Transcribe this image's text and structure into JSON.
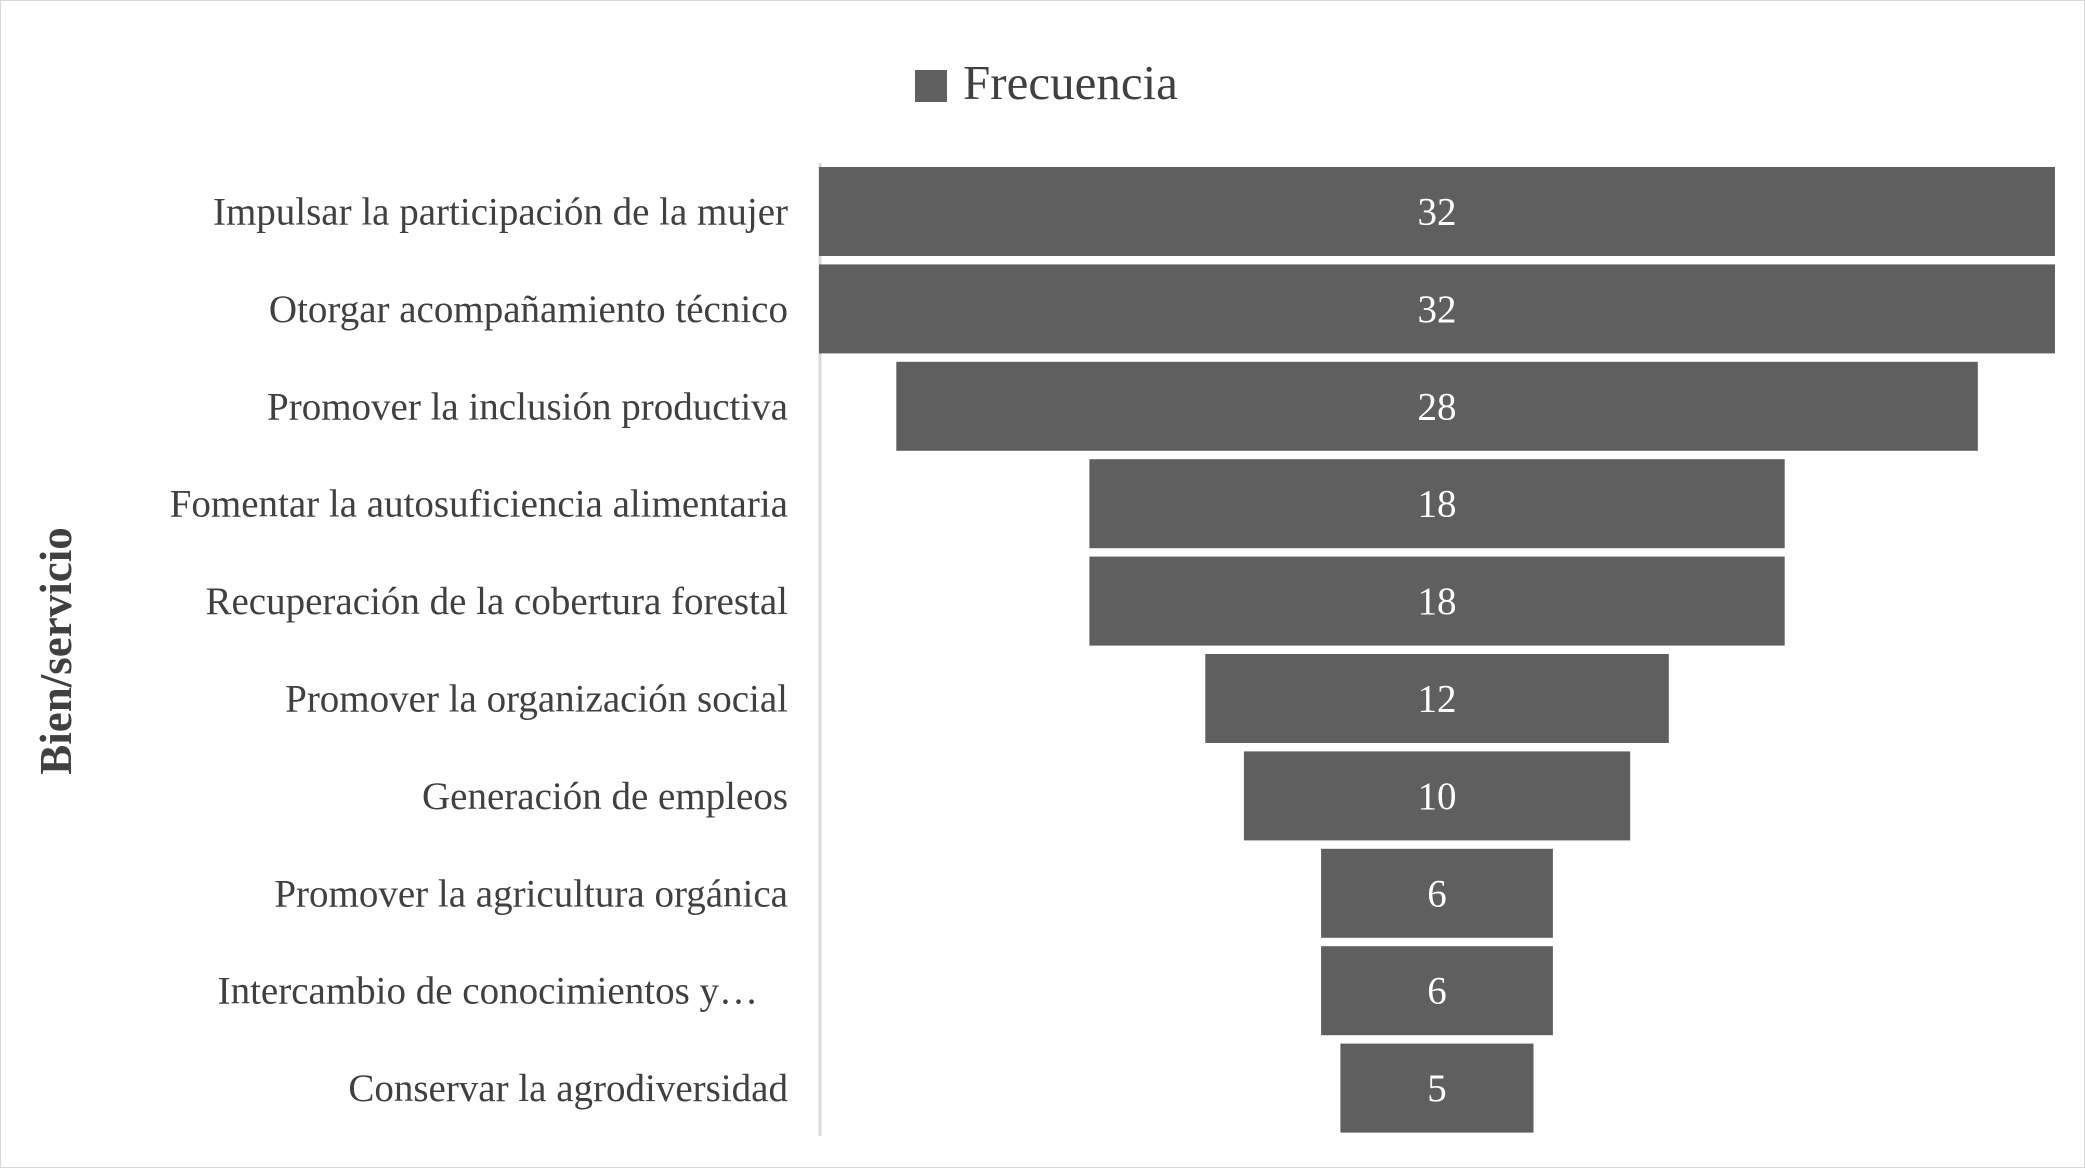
{
  "chart_data": {
    "type": "bar",
    "variant": "funnel",
    "orientation": "horizontal",
    "categories": [
      "Impulsar la participación de la mujer",
      "Otorgar acompañamiento técnico",
      "Promover la inclusión productiva",
      "Fomentar la autosuficiencia alimentaria",
      "Recuperación de la cobertura forestal",
      "Promover la organización social",
      "Generación de empleos",
      "Promover la agricultura orgánica",
      "Intercambio de conocimientos y…",
      "Conservar la agrodiversidad"
    ],
    "series": [
      {
        "name": "Frecuencia",
        "values": [
          32,
          32,
          28,
          18,
          18,
          12,
          10,
          6,
          6,
          5
        ],
        "color": "#5f5f5f"
      }
    ],
    "title": "",
    "xlabel": "",
    "ylabel": "Bien/servicio",
    "xlim": [
      0,
      32
    ],
    "legend_position": "top-center",
    "grid": false
  }
}
